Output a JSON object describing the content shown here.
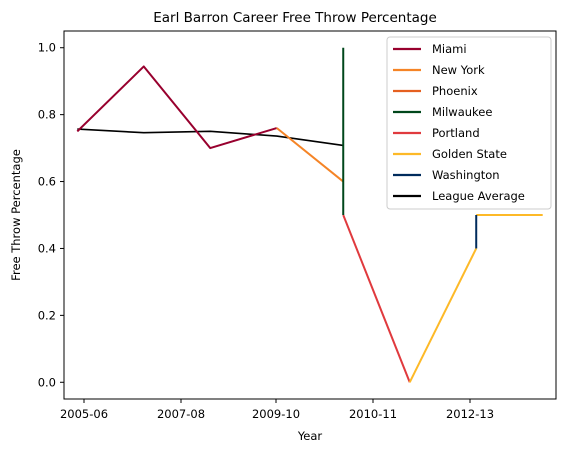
{
  "chart_data": {
    "type": "line",
    "title": "Earl Barron Career Free Throw Percentage",
    "xlabel": "Year",
    "ylabel": "Free Throw Percentage",
    "xlim": [
      -0.2,
      7.2
    ],
    "ylim": [
      -0.05,
      1.05
    ],
    "x_ticks": [
      {
        "x": 0,
        "label": "2005-06"
      },
      {
        "x": 2,
        "label": "2007-08"
      },
      {
        "x": 4,
        "label": "2009-10"
      },
      {
        "x": 6,
        "label": "2010-11"
      },
      {
        "x": 8,
        "label": "2012-13"
      }
    ],
    "y_ticks": [
      {
        "y": 0.0,
        "label": "0.0"
      },
      {
        "y": 0.2,
        "label": "0.2"
      },
      {
        "y": 0.4,
        "label": "0.4"
      },
      {
        "y": 0.6,
        "label": "0.6"
      },
      {
        "y": 0.8,
        "label": "0.8"
      },
      {
        "y": 1.0,
        "label": "1.0"
      }
    ],
    "grid": false,
    "legend_position": "top-right",
    "series": [
      {
        "name": "Miami",
        "color": "#98002E",
        "points": [
          [
            0,
            0.75
          ],
          [
            1,
            0.944
          ],
          [
            2,
            0.7
          ],
          [
            3,
            0.76
          ]
        ]
      },
      {
        "name": "New York",
        "color": "#F58426",
        "points": [
          [
            3,
            0.76
          ],
          [
            4,
            0.6
          ]
        ]
      },
      {
        "name": "Phoenix",
        "color": "#E56020",
        "points": []
      },
      {
        "name": "Milwaukee",
        "color": "#00471B",
        "points": [
          [
            4,
            0.5
          ],
          [
            4,
            1.0
          ]
        ]
      },
      {
        "name": "Portland",
        "color": "#E03A3E",
        "points": [
          [
            4,
            0.5
          ],
          [
            5,
            0.0
          ]
        ]
      },
      {
        "name": "Golden State",
        "color": "#FDB927",
        "points": [
          [
            5,
            0.0
          ],
          [
            6,
            0.4
          ]
        ]
      },
      {
        "name": "Washington",
        "color": "#002B5C",
        "points": [
          [
            6,
            0.4
          ],
          [
            6,
            0.5
          ]
        ]
      },
      {
        "name": "League Average",
        "color": "#000000",
        "points": [
          [
            0,
            0.757
          ],
          [
            1,
            0.746
          ],
          [
            2,
            0.75
          ],
          [
            3,
            0.736
          ],
          [
            4,
            0.708
          ]
        ]
      }
    ],
    "extra_segments": [
      {
        "series": "Golden State",
        "points": [
          [
            6,
            0.5
          ],
          [
            7,
            0.5
          ]
        ]
      }
    ]
  }
}
